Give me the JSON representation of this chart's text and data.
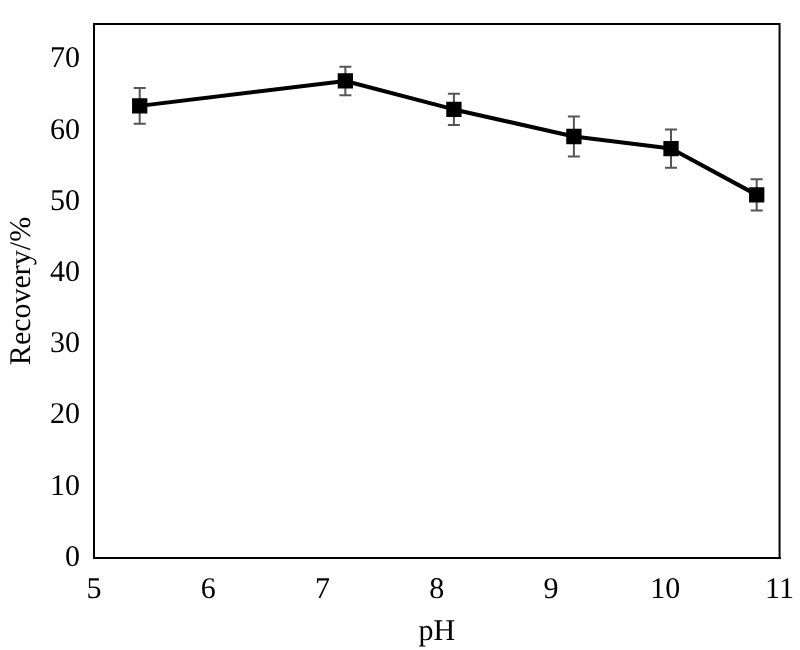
{
  "chart_data": {
    "type": "line",
    "xlabel": "pH",
    "ylabel": "Recovery/%",
    "x": [
      5.4,
      7.2,
      8.15,
      9.2,
      10.05,
      10.8
    ],
    "series": [
      {
        "color": "#000000",
        "values": [
          63.5,
          67,
          63,
          59.2,
          57.5,
          51
        ],
        "errors": [
          2.5,
          2,
          2.2,
          2.8,
          2.7,
          2.2
        ]
      }
    ],
    "xlim": [
      5,
      11
    ],
    "xticks": [
      5,
      6,
      7,
      8,
      9,
      10,
      11
    ],
    "ylim": [
      0,
      75
    ],
    "yticks": [
      0,
      10,
      20,
      30,
      40,
      50,
      60,
      70
    ],
    "grid": false,
    "legend": false,
    "marker": "square",
    "line_style": "solid"
  }
}
